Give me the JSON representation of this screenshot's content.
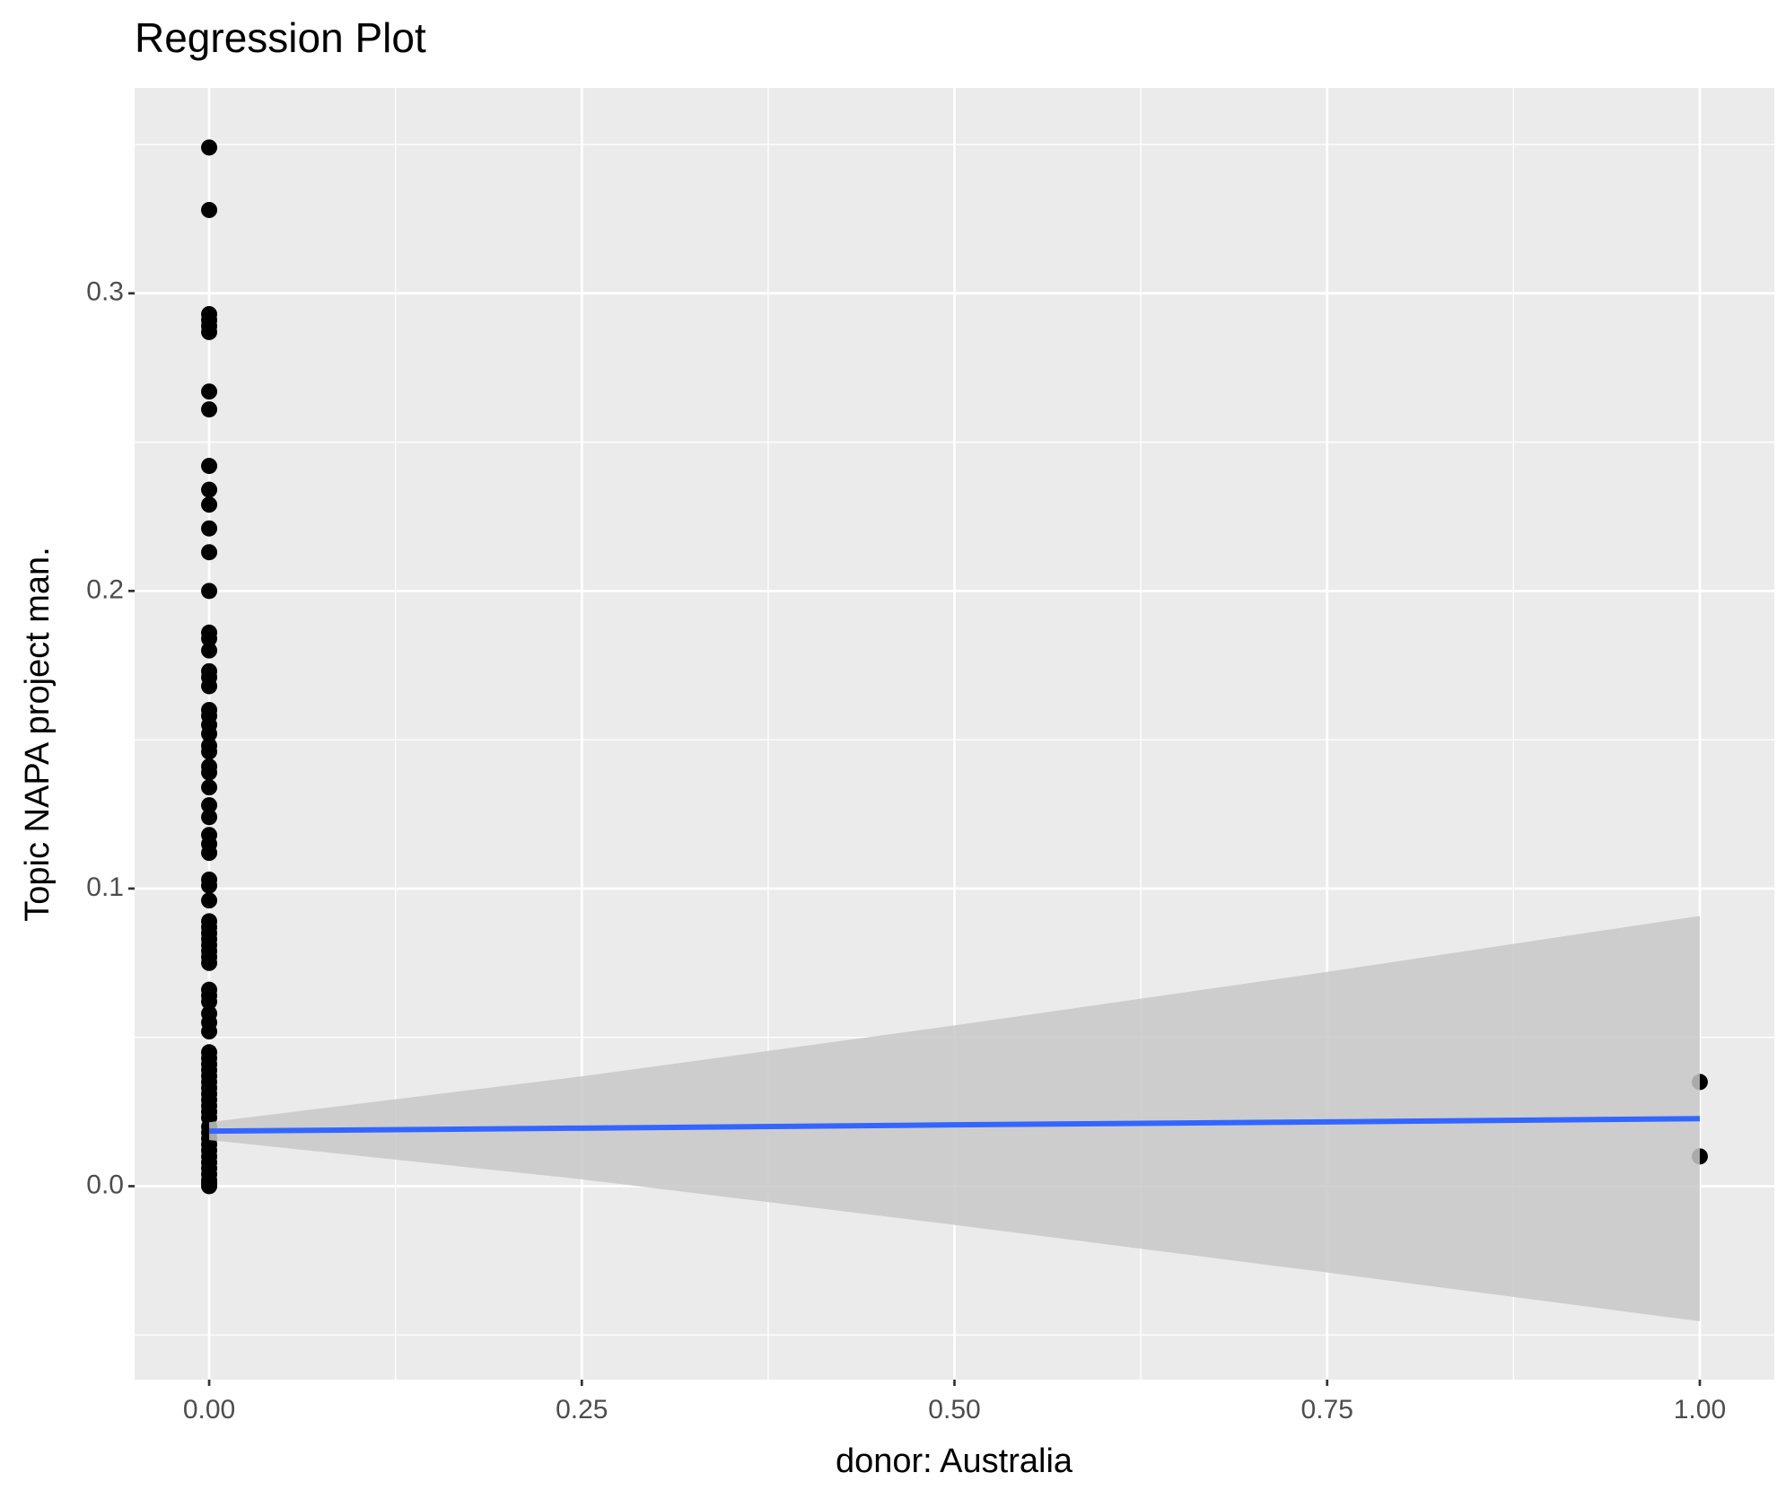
{
  "chart_data": {
    "type": "scatter",
    "title": "Regression Plot",
    "x_label": "donor: Australia",
    "y_label": "Topic NAPA project man.",
    "xlim": [
      -0.05,
      1.05
    ],
    "ylim": [
      -0.065,
      0.369
    ],
    "xticks": [
      {
        "value": 0,
        "label": "0.00"
      },
      {
        "value": 0.25,
        "label": "0.25"
      },
      {
        "value": 0.5,
        "label": "0.50"
      },
      {
        "value": 0.75,
        "label": "0.75"
      },
      {
        "value": 1,
        "label": "1.00"
      }
    ],
    "yticks": [
      {
        "value": 0,
        "label": "0.0"
      },
      0.1,
      0.2,
      0.3
    ],
    "grid": true,
    "background": "#ebebeb",
    "points": {
      "color": "#000000",
      "x": [
        0,
        0,
        0,
        0,
        0,
        0,
        0,
        0,
        0,
        0,
        0,
        0,
        0,
        0,
        0,
        0,
        0,
        0,
        0,
        0,
        0,
        0,
        0,
        0,
        0,
        0,
        0,
        0,
        0,
        0,
        0,
        0,
        0,
        0,
        0,
        0,
        0,
        0,
        0,
        0,
        0,
        0,
        0,
        0,
        0,
        0,
        0,
        0,
        0,
        0,
        0,
        0,
        0,
        0,
        0,
        0,
        0,
        0,
        0,
        0,
        0,
        0,
        0,
        0,
        0,
        0,
        0,
        0,
        0,
        0,
        0,
        0,
        0,
        0,
        0,
        1,
        1
      ],
      "y": [
        0.349,
        0.328,
        0.293,
        0.291,
        0.289,
        0.287,
        0.267,
        0.261,
        0.242,
        0.234,
        0.229,
        0.221,
        0.213,
        0.2,
        0.186,
        0.184,
        0.18,
        0.173,
        0.171,
        0.168,
        0.16,
        0.158,
        0.155,
        0.152,
        0.148,
        0.146,
        0.141,
        0.139,
        0.134,
        0.128,
        0.124,
        0.118,
        0.115,
        0.112,
        0.103,
        0.101,
        0.096,
        0.089,
        0.087,
        0.085,
        0.083,
        0.081,
        0.079,
        0.077,
        0.075,
        0.066,
        0.064,
        0.062,
        0.058,
        0.055,
        0.052,
        0.045,
        0.043,
        0.041,
        0.039,
        0.037,
        0.035,
        0.033,
        0.031,
        0.029,
        0.027,
        0.025,
        0.023,
        0.02,
        0.018,
        0.016,
        0.014,
        0.012,
        0.01,
        0.008,
        0.006,
        0.004,
        0.002,
        0.001,
        0,
        0.035,
        0.01
      ]
    },
    "fit": {
      "color": "#3366ff",
      "fill": "#c8c8c8",
      "x": [
        0,
        0.25,
        0.5,
        0.75,
        1
      ],
      "y": [
        0.0185,
        0.0195,
        0.0206,
        0.0216,
        0.0227
      ],
      "lower": [
        0.0155,
        0.0023,
        -0.013,
        -0.029,
        -0.0454
      ],
      "upper": [
        0.0215,
        0.0369,
        0.054,
        0.072,
        0.0908
      ]
    }
  }
}
